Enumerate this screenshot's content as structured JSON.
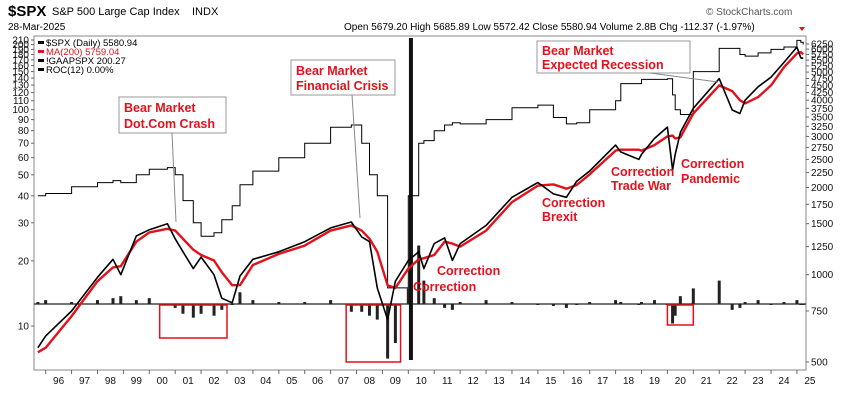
{
  "header": {
    "symbol": "$SPX",
    "name": "S&P 500 Large Cap Index",
    "exchange": "INDX",
    "date": "28-Mar-2025",
    "quote": "Open 5679.20  High 5685.89  Low 5572.42  Close 5580.94  Volume 2.8B  Chg -112.37 (-1.97%)",
    "quote_parts": [
      {
        "label": "Open",
        "value": "5679.20"
      },
      {
        "label": "High",
        "value": "5685.89"
      },
      {
        "label": "Low",
        "value": "5572.42"
      },
      {
        "label": "Close",
        "value": "5580.94"
      },
      {
        "label": "Volume",
        "value": "2.8B"
      },
      {
        "label": "Chg",
        "value": "-112.37 (-1.97%)"
      }
    ],
    "watermark": "© StockCharts.com"
  },
  "legend": [
    {
      "text": "$SPX (Daily) 5580.94",
      "color": "#000000"
    },
    {
      "text": "MA(200) 5759.04",
      "color": "#e3111b"
    },
    {
      "text": "!GAAPSPX 200.27",
      "color": "#000000"
    },
    {
      "text": "ROC(12) 0.00%",
      "color": "#000000"
    }
  ],
  "colors": {
    "price": "#000000",
    "ma": "#e3111b",
    "annotation": "#e3111b",
    "background": "#ffffff"
  },
  "annotations": [
    {
      "label": "Bear Market\nDot.Com Crash",
      "boxed": true
    },
    {
      "label": "Bear Market\nFinancial Crisis",
      "boxed": true
    },
    {
      "label": "Bear Market\nExpected Recession",
      "boxed": true
    },
    {
      "label": "Correction",
      "boxed": false
    },
    {
      "label": "Correction",
      "boxed": false
    },
    {
      "label": "Correction\nBrexit",
      "boxed": false
    },
    {
      "label": "Correction\nTrade War",
      "boxed": false
    },
    {
      "label": "Correction\nPandemic",
      "boxed": false
    }
  ],
  "chart_data": {
    "type": "line",
    "title": "$SPX S&P 500 Large Cap Index INDX",
    "x_ticks": [
      "96",
      "97",
      "98",
      "99",
      "00",
      "01",
      "02",
      "03",
      "04",
      "05",
      "06",
      "07",
      "08",
      "09",
      "10",
      "11",
      "12",
      "13",
      "14",
      "15",
      "16",
      "17",
      "18",
      "19",
      "20",
      "21",
      "22",
      "23",
      "24",
      "25"
    ],
    "left_ticks": [
      "10",
      "20",
      "30",
      "40",
      "50",
      "60",
      "70",
      "80",
      "90",
      "100",
      "110",
      "120",
      "130",
      "140",
      "150",
      "160",
      "170",
      "180",
      "190",
      "200",
      "210"
    ],
    "right_ticks": [
      "500",
      "750",
      "1000",
      "1250",
      "1500",
      "1750",
      "2000",
      "2250",
      "2500",
      "2750",
      "3000",
      "3250",
      "3500",
      "3750",
      "4000",
      "4250",
      "4500",
      "4750",
      "5000",
      "5250",
      "5500",
      "5750",
      "6000",
      "6250"
    ],
    "right_scale": "log",
    "left_scale": "log",
    "x": [
      1995.7,
      1996.0,
      1997.0,
      1998.0,
      1998.6,
      1998.9,
      1999.5,
      2000.0,
      2000.7,
      2001.0,
      2001.3,
      2001.7,
      2002.0,
      2002.5,
      2002.8,
      2003.2,
      2003.5,
      2004.0,
      2005.0,
      2006.0,
      2007.0,
      2007.8,
      2008.2,
      2008.5,
      2008.8,
      2009.2,
      2009.5,
      2010.0,
      2010.4,
      2010.6,
      2011.0,
      2011.4,
      2011.7,
      2012.0,
      2013.0,
      2014.0,
      2015.0,
      2015.6,
      2016.1,
      2016.5,
      2017.0,
      2018.0,
      2018.2,
      2018.9,
      2019.0,
      2019.5,
      2020.0,
      2020.2,
      2020.3,
      2020.5,
      2021.0,
      2022.0,
      2022.5,
      2022.8,
      2023.0,
      2023.5,
      2024.0,
      2024.5,
      2025.0,
      2025.15,
      2025.24
    ],
    "series": [
      {
        "name": "$SPX (Daily)",
        "axis": "right",
        "values": [
          560,
          615,
          750,
          980,
          1130,
          1000,
          1360,
          1430,
          1500,
          1330,
          1200,
          1050,
          1150,
          1000,
          830,
          800,
          990,
          1130,
          1200,
          1300,
          1450,
          1520,
          1350,
          1300,
          900,
          700,
          950,
          1120,
          1200,
          1050,
          1280,
          1340,
          1120,
          1280,
          1480,
          1850,
          2080,
          1900,
          1850,
          2100,
          2280,
          2800,
          2650,
          2500,
          2600,
          2950,
          3230,
          2300,
          2600,
          3100,
          3750,
          4750,
          3700,
          3600,
          4000,
          4450,
          4800,
          5400,
          6100,
          5600,
          5580
        ]
      },
      {
        "name": "MA(200)",
        "axis": "right",
        "values": [
          540,
          560,
          720,
          950,
          1060,
          1070,
          1300,
          1400,
          1440,
          1420,
          1330,
          1220,
          1170,
          1120,
          1020,
          920,
          920,
          1080,
          1180,
          1260,
          1420,
          1480,
          1420,
          1330,
          1200,
          920,
          900,
          1050,
          1130,
          1140,
          1170,
          1300,
          1280,
          1250,
          1420,
          1780,
          2030,
          2050,
          1980,
          2040,
          2220,
          2680,
          2700,
          2700,
          2680,
          2800,
          3000,
          3020,
          2950,
          2980,
          3600,
          4500,
          4300,
          4000,
          3900,
          4100,
          4500,
          5200,
          5800,
          5860,
          5759
        ]
      },
      {
        "name": "!GAAPSPX",
        "axis": "left",
        "values": [
          40,
          41,
          44,
          46,
          47,
          46,
          50,
          53,
          54,
          50,
          38,
          30,
          26,
          27,
          31,
          36,
          45,
          52,
          60,
          70,
          83,
          85,
          70,
          50,
          40,
          15,
          15,
          40,
          70,
          72,
          80,
          85,
          87,
          86,
          90,
          102,
          105,
          92,
          86,
          87,
          100,
          110,
          132,
          132,
          138,
          138,
          139,
          117,
          100,
          95,
          150,
          192,
          192,
          180,
          177,
          183,
          190,
          195,
          209,
          205,
          200.27
        ]
      },
      {
        "name": "ROC(12)",
        "axis": "roc",
        "values": [
          1,
          2,
          1,
          2,
          3,
          4,
          2,
          3,
          0,
          -2,
          -5,
          -7,
          -5,
          -6,
          -3,
          0,
          6,
          2,
          1,
          1,
          2,
          -4,
          -4,
          -6,
          -8,
          -28,
          -20,
          8,
          30,
          12,
          3,
          -2,
          -3,
          1,
          2,
          1,
          0,
          -1,
          -2,
          0,
          1,
          2,
          1,
          0,
          1,
          2,
          0,
          -10,
          -6,
          4,
          8,
          12,
          -3,
          -2,
          1,
          2,
          0,
          1,
          2,
          0,
          0
        ]
      }
    ],
    "roc_boxes": [
      {
        "x_from": 2000.4,
        "x_to": 2003.0
      },
      {
        "x_from": 2007.6,
        "x_to": 2009.7
      },
      {
        "x_from": 2020.0,
        "x_to": 2021.0
      }
    ],
    "vertical_marker_year": 2010.1
  }
}
